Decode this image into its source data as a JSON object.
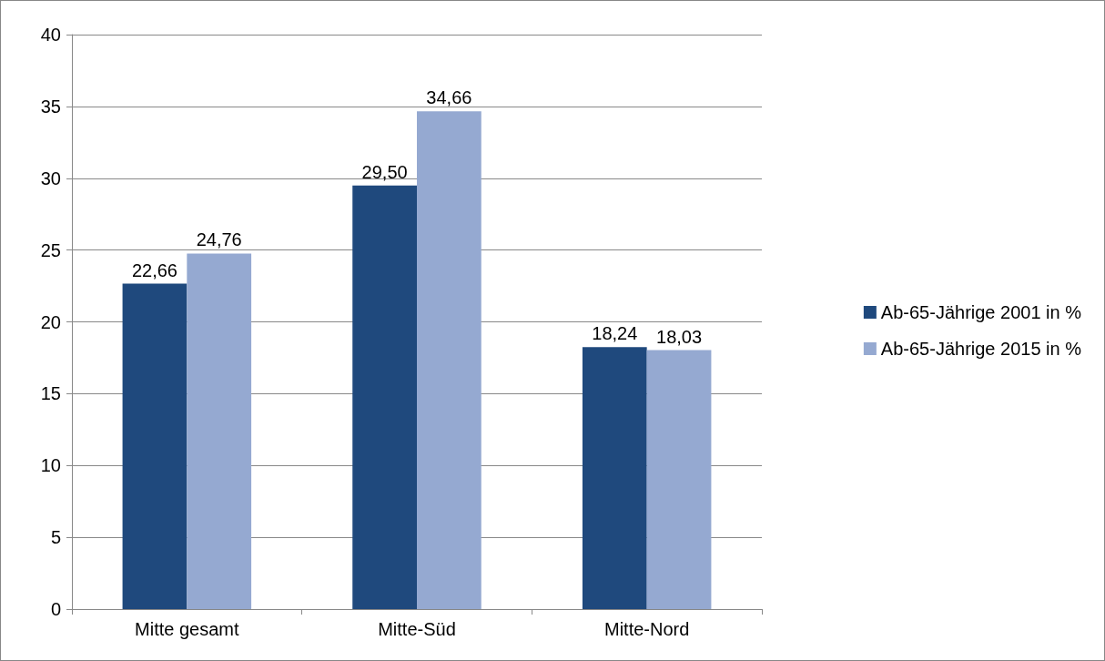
{
  "chart_data": {
    "type": "bar",
    "categories": [
      "Mitte gesamt",
      "Mitte-Süd",
      "Mitte-Nord"
    ],
    "series": [
      {
        "name": "Ab-65-Jährige 2001 in %",
        "color": "#1f497d",
        "values": [
          22.66,
          29.5,
          18.24
        ],
        "value_labels": [
          "22,66",
          "29,50",
          "18,24"
        ]
      },
      {
        "name": "Ab-65-Jährige 2015 in %",
        "color": "#95a9d1",
        "values": [
          24.76,
          34.66,
          18.03
        ],
        "value_labels": [
          "24,76",
          "34,66",
          "18,03"
        ]
      }
    ],
    "ylim": [
      0,
      40
    ],
    "yticks": [
      0,
      5,
      10,
      15,
      20,
      25,
      30,
      35,
      40
    ],
    "grid": "y",
    "legend": "right"
  }
}
